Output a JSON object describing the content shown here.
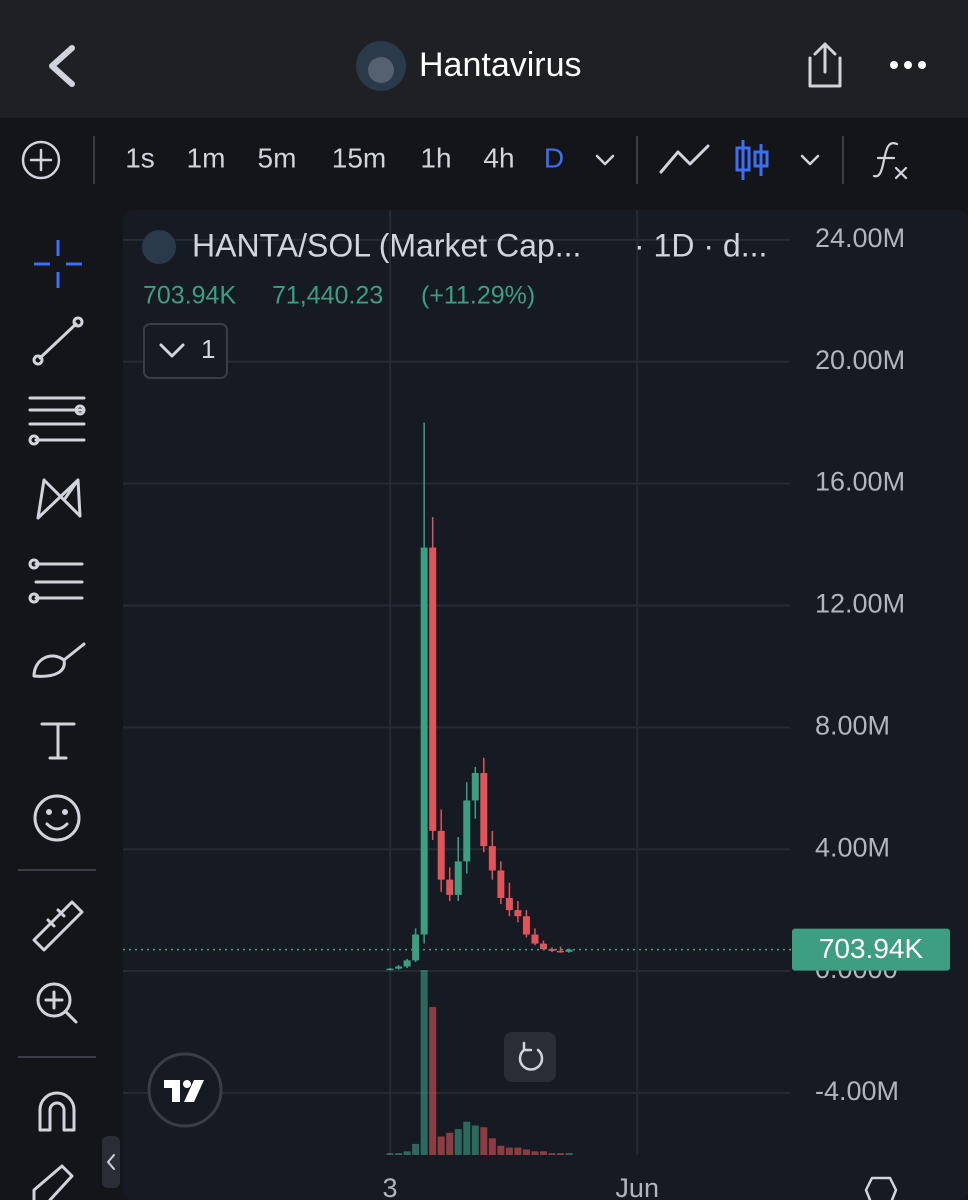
{
  "header": {
    "title": "Hantavirus"
  },
  "toolbar": {
    "intervals": [
      "1s",
      "1m",
      "5m",
      "15m",
      "1h",
      "4h",
      "D"
    ],
    "active_interval": 6
  },
  "chart_data": {
    "type": "candlestick",
    "legend": {
      "symbol": "HANTA/SOL (Market Cap...",
      "interval": "· 1D · d...",
      "change": "71,440.23",
      "change_pct": "(+11.29%)",
      "indicators": "1"
    },
    "x": [
      3,
      4,
      5,
      6,
      7,
      8,
      9,
      10,
      11,
      12,
      13,
      14,
      15,
      16,
      17,
      18,
      19,
      20,
      21,
      22,
      23,
      24
    ],
    "open": [
      50000,
      80000,
      150000,
      350000,
      1200000,
      13900000,
      4600000,
      3000000,
      2500000,
      3600000,
      5600000,
      6500000,
      4100000,
      3300000,
      2400000,
      2000000,
      1800000,
      1200000,
      900000,
      720000,
      660000,
      632500
    ],
    "high": [
      100000,
      200000,
      400000,
      1400000,
      18000000,
      14900000,
      5300000,
      3400000,
      4400000,
      6200000,
      6700000,
      7000000,
      4600000,
      3600000,
      2900000,
      2300000,
      2000000,
      1400000,
      1000000,
      780000,
      800000,
      740000
    ],
    "low": [
      20000,
      50000,
      100000,
      300000,
      900000,
      4300000,
      2600000,
      2300000,
      2300000,
      3200000,
      5000000,
      3900000,
      3000000,
      2200000,
      1800000,
      1600000,
      1100000,
      850000,
      680000,
      620000,
      600000,
      600000
    ],
    "close": [
      80000,
      150000,
      350000,
      1200000,
      13900000,
      4600000,
      3000000,
      2500000,
      3600000,
      5600000,
      6500000,
      4100000,
      3300000,
      2400000,
      2000000,
      1800000,
      1200000,
      900000,
      720000,
      660000,
      632500,
      703940
    ],
    "volume": [
      1,
      1,
      2,
      6,
      100,
      80,
      10,
      12,
      14,
      18,
      16,
      15,
      9,
      5,
      4,
      4,
      3,
      2,
      2,
      1,
      1,
      1
    ],
    "up_color": "#3d9e82",
    "down_color": "#e0545a",
    "xlim": [
      -28.34,
      49.93
    ],
    "xticks": [
      {
        "value": 3,
        "label": "3"
      },
      {
        "value": 32,
        "label": "Jun"
      }
    ],
    "ylim": [
      -6530000,
      24980000
    ],
    "yticks": [
      {
        "value": 24000000,
        "label": "24.00M"
      },
      {
        "value": 20000000,
        "label": "20.00M"
      },
      {
        "value": 16000000,
        "label": "16.00M"
      },
      {
        "value": 12000000,
        "label": "12.00M"
      },
      {
        "value": 8000000,
        "label": "8.00M"
      },
      {
        "value": 4000000,
        "label": "4.00M"
      },
      {
        "value": 0,
        "label": "0.0000"
      },
      {
        "value": -4000000,
        "label": "-4.00M"
      }
    ],
    "price_line": {
      "value": 703940,
      "label": "703.94K"
    },
    "grid": true
  }
}
